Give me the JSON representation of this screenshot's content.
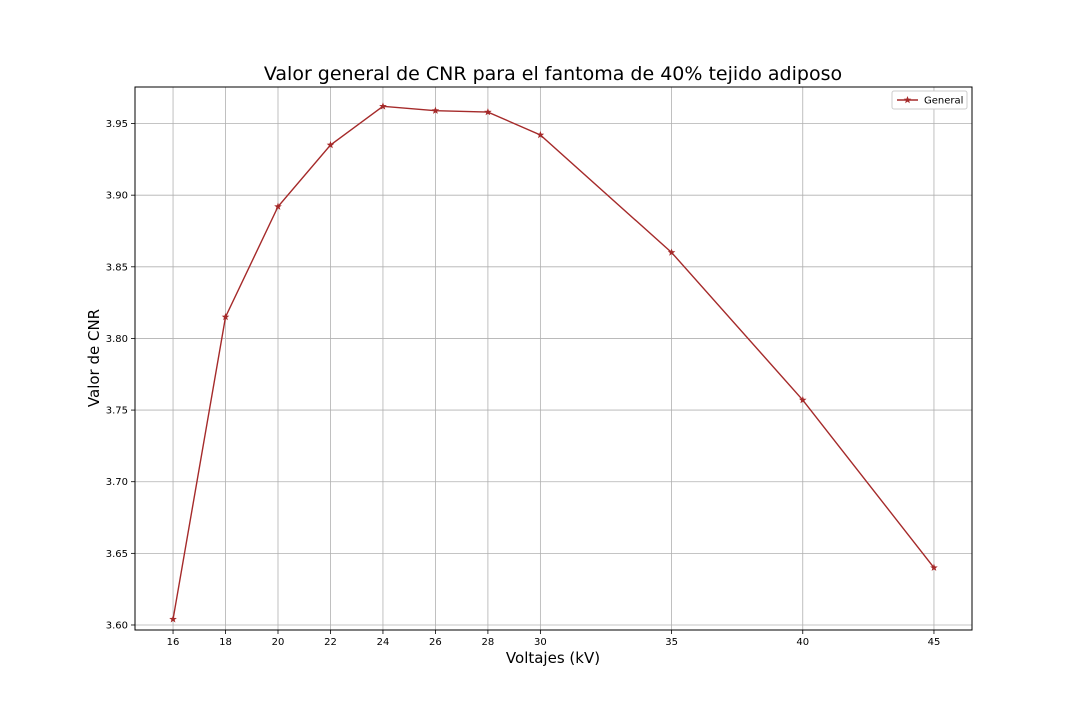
{
  "chart_data": {
    "type": "line",
    "title": "Valor general de CNR para el fantoma de 40% tejido adiposo",
    "xlabel": "Voltajes (kV)",
    "ylabel": "Valor de CNR",
    "x": [
      16,
      18,
      20,
      22,
      24,
      26,
      28,
      30,
      35,
      40,
      45
    ],
    "x_ticks": [
      16,
      18,
      20,
      22,
      24,
      26,
      28,
      30,
      35,
      40,
      45
    ],
    "xlim": [
      14.55,
      46.45
    ],
    "ylim": [
      3.5965,
      3.9755
    ],
    "y_ticks": [
      "3.60",
      "3.65",
      "3.70",
      "3.75",
      "3.80",
      "3.85",
      "3.90",
      "3.95"
    ],
    "grid": true,
    "legend_position": "top-right",
    "series": [
      {
        "name": "General",
        "color": "#a52a2a",
        "marker": "star",
        "values": [
          3.604,
          3.815,
          3.892,
          3.935,
          3.962,
          3.959,
          3.958,
          3.942,
          3.86,
          3.757,
          3.64
        ]
      }
    ]
  }
}
